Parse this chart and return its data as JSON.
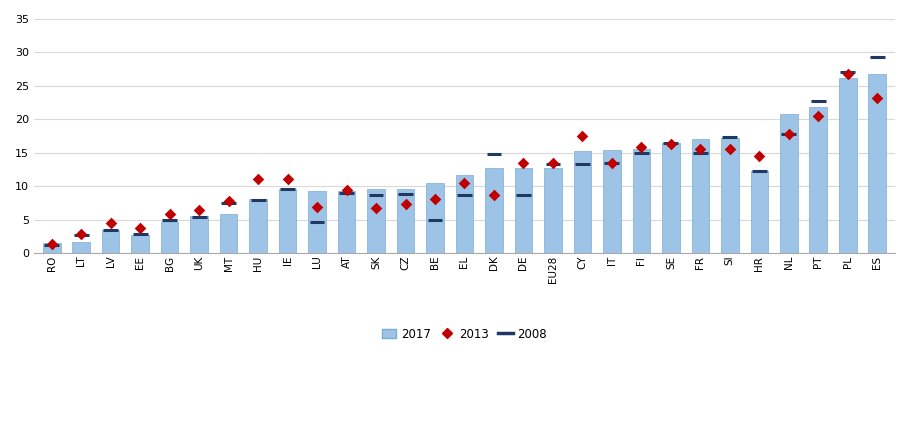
{
  "categories": [
    "RO",
    "LT",
    "LV",
    "EE",
    "BG",
    "UK",
    "MT",
    "HU",
    "IE",
    "LU",
    "AT",
    "SK",
    "CZ",
    "BE",
    "EL",
    "DK",
    "DE",
    "EU28",
    "CY",
    "IT",
    "FI",
    "SE",
    "FR",
    "SI",
    "HR",
    "NL",
    "PT",
    "PL",
    "ES"
  ],
  "bar2017": [
    1.5,
    1.7,
    3.4,
    2.7,
    4.6,
    5.5,
    5.8,
    8.0,
    9.5,
    9.2,
    9.3,
    9.5,
    9.5,
    10.5,
    11.7,
    12.7,
    12.7,
    12.7,
    15.2,
    15.4,
    15.6,
    16.5,
    17.0,
    17.2,
    12.3,
    20.8,
    21.8,
    26.1,
    26.7
  ],
  "dot2013": [
    1.4,
    2.8,
    4.5,
    3.7,
    5.9,
    6.5,
    7.8,
    11.0,
    11.0,
    6.9,
    9.4,
    6.7,
    7.3,
    8.0,
    10.4,
    8.7,
    13.5,
    13.5,
    17.5,
    13.4,
    15.8,
    16.3,
    15.5,
    15.6,
    14.5,
    17.8,
    20.5,
    26.7,
    23.2
  ],
  "line2008": [
    1.2,
    2.7,
    3.4,
    2.8,
    5.0,
    5.4,
    7.4,
    7.9,
    9.5,
    4.6,
    8.9,
    8.6,
    8.8,
    5.0,
    8.7,
    14.8,
    8.7,
    13.3,
    13.3,
    13.5,
    15.0,
    16.5,
    15.0,
    17.3,
    12.2,
    17.8,
    22.8,
    27.0,
    29.3
  ],
  "bar_color": "#9DC3E6",
  "dot_color": "#C00000",
  "line_color": "#1F3864",
  "ylim": [
    0,
    35
  ],
  "yticks": [
    0,
    5,
    10,
    15,
    20,
    25,
    30,
    35
  ],
  "bg_color": "#FFFFFF",
  "grid_color": "#D9D9D9"
}
